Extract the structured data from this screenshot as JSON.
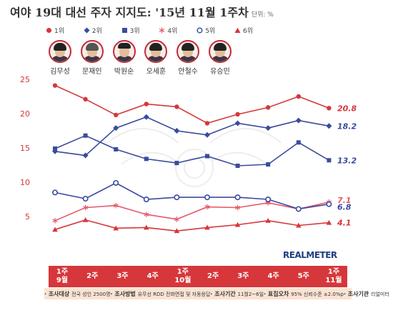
{
  "title": "여야 19대 대선 주자 지지도: '15년 11월 1주차",
  "unit": "단위: %",
  "brand": "REALMETER",
  "colors": {
    "red": "#d6373b",
    "navy": "#3a4b9e",
    "pink": "#e6596a"
  },
  "legend": [
    {
      "rank": "1위",
      "marker": "circle-filled",
      "color": "#d6373b"
    },
    {
      "rank": "2위",
      "marker": "diamond-filled",
      "color": "#3a4b9e"
    },
    {
      "rank": "3위",
      "marker": "square-filled",
      "color": "#3a4b9e"
    },
    {
      "rank": "4위",
      "marker": "asterisk",
      "color": "#e6596a"
    },
    {
      "rank": "5위",
      "marker": "circle-open",
      "color": "#3a4b9e"
    },
    {
      "rank": "6위",
      "marker": "triangle-filled",
      "color": "#d6373b"
    }
  ],
  "candidates": [
    {
      "name": "김무성"
    },
    {
      "name": "문재인"
    },
    {
      "name": "박원순"
    },
    {
      "name": "오세훈"
    },
    {
      "name": "안철수"
    },
    {
      "name": "유승민"
    }
  ],
  "x_labels": [
    {
      "week": "1주",
      "month": "9월"
    },
    {
      "week": "2주",
      "month": ""
    },
    {
      "week": "3주",
      "month": ""
    },
    {
      "week": "4주",
      "month": ""
    },
    {
      "week": "1주",
      "month": "10월"
    },
    {
      "week": "2주",
      "month": ""
    },
    {
      "week": "3주",
      "month": ""
    },
    {
      "week": "4주",
      "month": ""
    },
    {
      "week": "5주",
      "month": ""
    },
    {
      "week": "1주",
      "month": "11월"
    }
  ],
  "footer": [
    {
      "label": "조사대상",
      "text": "전국 성인 2500명"
    },
    {
      "label": "조사방법",
      "text": "유무선 RDD 전화면접 및 자동응답"
    },
    {
      "label": "조사기간",
      "text": "11월2~6일"
    },
    {
      "label": "표집오차",
      "text": "95% 신뢰수준 ±2.0%p"
    },
    {
      "label": "조사기관",
      "text": "리얼미터"
    }
  ],
  "chart_data": {
    "type": "line",
    "title": "여야 19대 대선 주자 지지도: '15년 11월 1주차",
    "ylabel": "",
    "xlabel": "",
    "ylim": [
      0,
      25
    ],
    "yticks": [
      5,
      10,
      15,
      20,
      25
    ],
    "categories": [
      "9월 1주",
      "2주",
      "3주",
      "4주",
      "10월 1주",
      "2주",
      "3주",
      "4주",
      "5주",
      "11월 1주"
    ],
    "series": [
      {
        "name": "1위",
        "color": "#d6373b",
        "marker": "circle-filled",
        "values": [
          24.1,
          22.1,
          19.8,
          21.4,
          21.0,
          18.6,
          19.9,
          20.9,
          22.5,
          20.8
        ],
        "end_label": "20.8"
      },
      {
        "name": "2위",
        "color": "#3a4b9e",
        "marker": "diamond-filled",
        "values": [
          14.5,
          13.9,
          17.9,
          19.5,
          17.5,
          16.9,
          18.6,
          17.9,
          19.0,
          18.2
        ],
        "end_label": "18.2"
      },
      {
        "name": "3위",
        "color": "#3a4b9e",
        "marker": "square-filled",
        "values": [
          14.9,
          16.8,
          14.8,
          13.4,
          12.8,
          13.8,
          12.4,
          12.6,
          15.8,
          13.2
        ],
        "end_label": "13.2"
      },
      {
        "name": "4위",
        "color": "#e6596a",
        "marker": "asterisk",
        "values": [
          4.4,
          6.3,
          6.6,
          5.3,
          4.6,
          6.4,
          6.3,
          7.0,
          6.1,
          7.1
        ],
        "end_label": "7.1"
      },
      {
        "name": "5위",
        "color": "#3a4b9e",
        "marker": "circle-open",
        "values": [
          8.5,
          7.6,
          9.9,
          7.5,
          7.8,
          7.8,
          7.8,
          7.5,
          6.1,
          6.8
        ],
        "end_label": "6.8"
      },
      {
        "name": "6위",
        "color": "#d6373b",
        "marker": "triangle-filled",
        "values": [
          3.1,
          4.5,
          3.3,
          3.4,
          2.9,
          3.4,
          3.8,
          4.4,
          3.7,
          4.1
        ],
        "end_label": "4.1"
      }
    ]
  }
}
